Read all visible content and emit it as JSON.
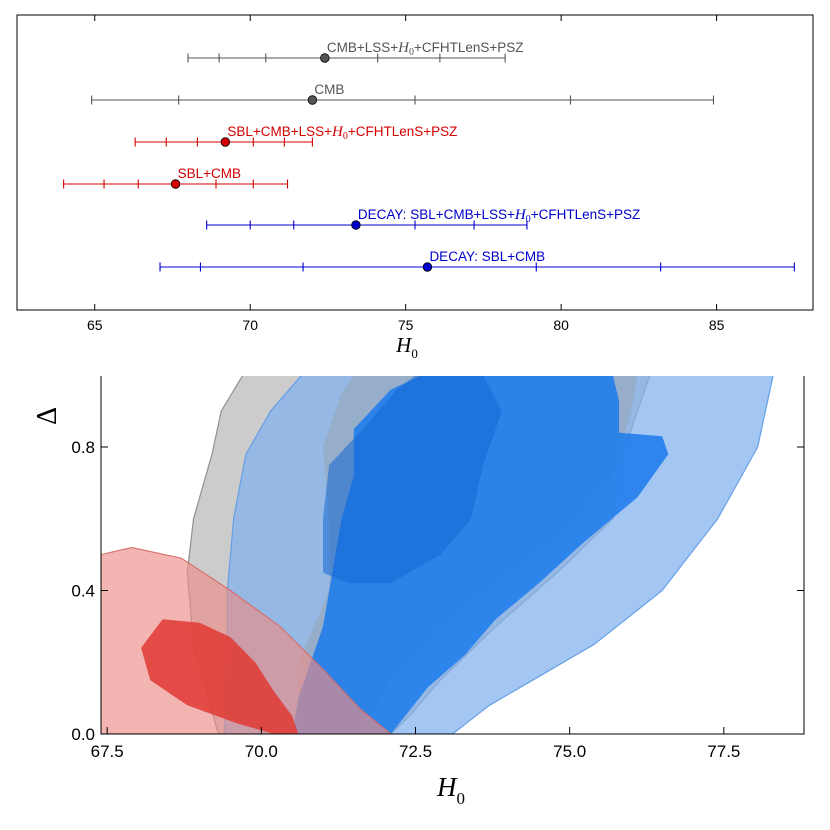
{
  "chart_data": [
    {
      "type": "errorbar",
      "xlabel": "H_0",
      "xlabel_main": "H",
      "xlabel_sub": "0",
      "xlim": [
        62.5,
        88.1
      ],
      "xticks": [
        65,
        70,
        75,
        80,
        85
      ],
      "xtick_labels": [
        "65",
        "70",
        "75",
        "80",
        "85"
      ],
      "rows": [
        {
          "label_before": "CMB+LSS+",
          "label_math": "H",
          "label_sub": "0",
          "label_after": "+CFHTLenS+PSZ",
          "color": "#555555",
          "center": 72.4,
          "ticks": [
            68.0,
            69.0,
            70.5,
            74.1,
            76.1,
            78.2
          ]
        },
        {
          "label_before": "CMB",
          "label_math": "",
          "label_sub": "",
          "label_after": "",
          "color": "#555555",
          "center": 72.0,
          "ticks": [
            64.9,
            67.7,
            75.3,
            80.3,
            84.9
          ]
        },
        {
          "label_before": "SBL+CMB+LSS+",
          "label_math": "H",
          "label_sub": "0",
          "label_after": "+CFHTLenS+PSZ",
          "color": "#d40000",
          "center": 69.2,
          "ticks": [
            66.3,
            67.3,
            68.3,
            70.1,
            71.1,
            72.0
          ]
        },
        {
          "label_before": "SBL+CMB",
          "label_math": "",
          "label_sub": "",
          "label_after": "",
          "color": "#d40000",
          "center": 67.6,
          "ticks": [
            64.0,
            65.3,
            66.4,
            68.9,
            70.1,
            71.2
          ]
        },
        {
          "label_before": "DECAY: SBL+CMB+LSS+",
          "label_math": "H",
          "label_sub": "0",
          "label_after": "+CFHTLenS+PSZ",
          "color": "#0000cc",
          "center": 73.4,
          "ticks": [
            68.6,
            70.0,
            71.4,
            75.3,
            77.2,
            78.9
          ]
        },
        {
          "label_before": "DECAY: SBL+CMB",
          "label_math": "",
          "label_sub": "",
          "label_after": "",
          "color": "#0000cc",
          "center": 75.7,
          "ticks": [
            67.1,
            68.4,
            71.7,
            79.2,
            83.2,
            87.5
          ]
        }
      ]
    },
    {
      "type": "contour",
      "xlabel": "H_0",
      "xlabel_main": "H",
      "xlabel_sub": "0",
      "ylabel": "ΔN",
      "ylabel_visible": "Δ",
      "xlim": [
        67.4,
        78.8
      ],
      "ylim": [
        0.0,
        1.0
      ],
      "xticks": [
        67.5,
        70.0,
        72.5,
        75.0,
        77.5
      ],
      "xtick_labels": [
        "67.5",
        "70.0",
        "72.5",
        "75.0",
        "77.5"
      ],
      "yticks": [
        0.0,
        0.4,
        0.8
      ],
      "ytick_labels": [
        "0.0",
        "0.4",
        "0.8"
      ],
      "regions": [
        {
          "name": "gray-outer-contour",
          "color": "#a3a3a3",
          "opacity": 0.55,
          "stroke": "#888888",
          "points": [
            [
              69.3,
              0.0
            ],
            [
              68.9,
              0.25
            ],
            [
              68.8,
              0.45
            ],
            [
              68.9,
              0.6
            ],
            [
              69.2,
              0.78
            ],
            [
              69.35,
              0.9
            ],
            [
              69.7,
              1.0
            ],
            [
              76.3,
              1.0
            ],
            [
              75.9,
              0.8
            ],
            [
              75.7,
              0.6
            ],
            [
              74.8,
              0.45
            ],
            [
              73.8,
              0.3
            ],
            [
              72.9,
              0.15
            ],
            [
              72.4,
              0.05
            ],
            [
              72.1,
              0.0
            ]
          ]
        },
        {
          "name": "blue-outer-contour",
          "color": "#7fb0ef",
          "opacity": 0.72,
          "stroke": "#5d9be6",
          "points": [
            [
              69.4,
              0.0
            ],
            [
              69.45,
              0.2
            ],
            [
              69.45,
              0.4
            ],
            [
              69.55,
              0.6
            ],
            [
              69.75,
              0.78
            ],
            [
              70.15,
              0.9
            ],
            [
              70.65,
              1.0
            ],
            [
              78.3,
              1.0
            ],
            [
              78.05,
              0.8
            ],
            [
              77.4,
              0.6
            ],
            [
              76.5,
              0.4
            ],
            [
              75.4,
              0.25
            ],
            [
              74.4,
              0.15
            ],
            [
              73.7,
              0.08
            ],
            [
              73.1,
              0.0
            ]
          ]
        },
        {
          "name": "gray-inner-contour",
          "color": "#9b9b9b",
          "opacity": 0.35,
          "stroke": "none",
          "points": [
            [
              70.6,
              0.0
            ],
            [
              70.6,
              0.2
            ],
            [
              71.1,
              0.4
            ],
            [
              71.1,
              0.6
            ],
            [
              71.0,
              0.8
            ],
            [
              71.3,
              0.95
            ],
            [
              71.5,
              1.0
            ],
            [
              76.1,
              1.0
            ],
            [
              76.0,
              0.9
            ],
            [
              75.7,
              0.72
            ],
            [
              74.8,
              0.55
            ],
            [
              73.8,
              0.42
            ],
            [
              72.9,
              0.3
            ],
            [
              72.1,
              0.15
            ],
            [
              71.6,
              0.0
            ]
          ]
        },
        {
          "name": "blue-inner-contour",
          "color": "#1f7cec",
          "opacity": 0.88,
          "stroke": "none",
          "points": [
            [
              70.5,
              0.0
            ],
            [
              70.6,
              0.1
            ],
            [
              70.8,
              0.2
            ],
            [
              71.0,
              0.3
            ],
            [
              71.1,
              0.4
            ],
            [
              71.3,
              0.6
            ],
            [
              71.5,
              0.72
            ],
            [
              71.5,
              0.85
            ],
            [
              72.1,
              0.96
            ],
            [
              72.6,
              1.0
            ],
            [
              75.7,
              1.0
            ],
            [
              75.8,
              0.93
            ],
            [
              75.8,
              0.84
            ],
            [
              76.5,
              0.83
            ],
            [
              76.6,
              0.78
            ],
            [
              76.1,
              0.66
            ],
            [
              75.2,
              0.53
            ],
            [
              74.5,
              0.42
            ],
            [
              73.8,
              0.32
            ],
            [
              73.3,
              0.22
            ],
            [
              72.7,
              0.13
            ],
            [
              72.1,
              0.0
            ]
          ]
        },
        {
          "name": "blue-core-contour",
          "color": "#1467d3",
          "opacity": 0.55,
          "stroke": "none",
          "points": [
            [
              71.0,
              0.45
            ],
            [
              71.0,
              0.6
            ],
            [
              71.1,
              0.75
            ],
            [
              71.7,
              0.86
            ],
            [
              72.2,
              0.96
            ],
            [
              72.5,
              1.0
            ],
            [
              73.6,
              1.0
            ],
            [
              73.9,
              0.9
            ],
            [
              73.6,
              0.75
            ],
            [
              73.4,
              0.6
            ],
            [
              72.9,
              0.5
            ],
            [
              72.1,
              0.42
            ],
            [
              71.4,
              0.42
            ]
          ]
        },
        {
          "name": "red-outer-contour",
          "color": "#eb8d88",
          "opacity": 0.65,
          "stroke": "#d86b66",
          "points": [
            [
              67.4,
              0.0
            ],
            [
              67.4,
              0.5
            ],
            [
              67.9,
              0.52
            ],
            [
              68.7,
              0.49
            ],
            [
              69.5,
              0.4
            ],
            [
              70.3,
              0.3
            ],
            [
              71.0,
              0.18
            ],
            [
              71.6,
              0.07
            ],
            [
              72.1,
              0.0
            ]
          ]
        },
        {
          "name": "red-inner-contour",
          "color": "#e03a32",
          "opacity": 0.85,
          "stroke": "none",
          "points": [
            [
              68.8,
              0.08
            ],
            [
              68.2,
              0.15
            ],
            [
              68.05,
              0.24
            ],
            [
              68.4,
              0.32
            ],
            [
              69.0,
              0.31
            ],
            [
              69.5,
              0.27
            ],
            [
              69.9,
              0.2
            ],
            [
              70.2,
              0.12
            ],
            [
              70.5,
              0.05
            ],
            [
              70.6,
              0.0
            ],
            [
              70.2,
              0.0
            ],
            [
              69.6,
              0.03
            ]
          ]
        }
      ]
    }
  ]
}
